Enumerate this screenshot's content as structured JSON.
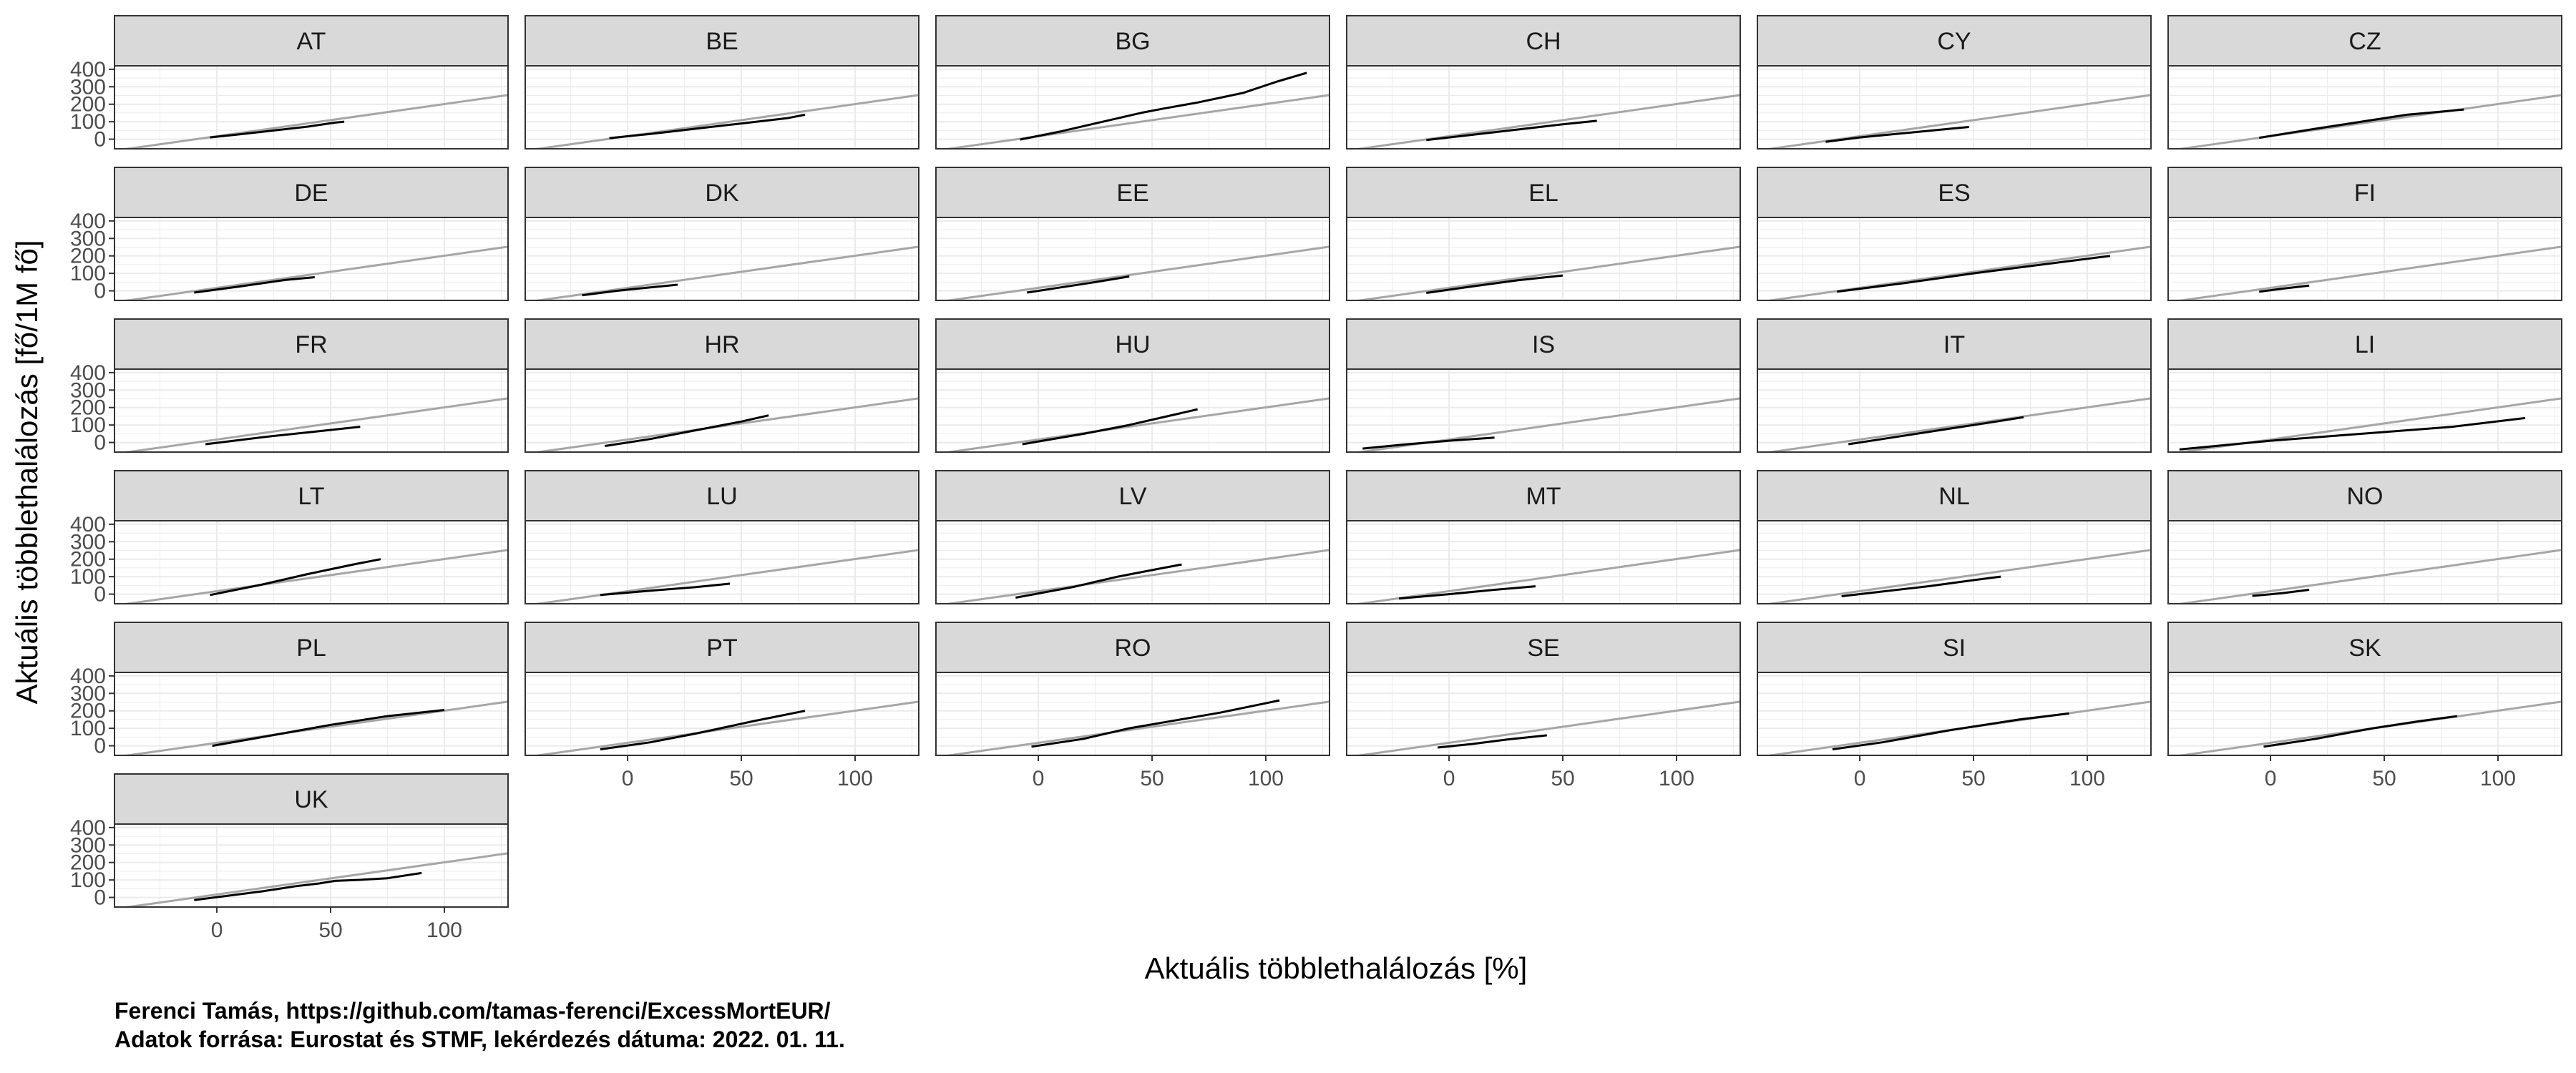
{
  "caption": {
    "line1": "Ferenci Tamás, https://github.com/tamas-ferenci/ExcessMortEUR/",
    "line2": "Adatok forrása: Eurostat és STMF, lekérdezés dátuma: 2022. 01. 11."
  },
  "colors": {
    "data_line": "#000000",
    "reference_line": "#a6a6a6",
    "strip_fill": "#d9d9d9",
    "grid": "#ebebeb",
    "panel_border": "#333333"
  },
  "chart_data": {
    "type": "line",
    "layout": "facet_wrap",
    "ncol": 6,
    "xlabel": "Aktuális többlethalálozás [%]",
    "ylabel": "Aktuális többlethalálozás [fő/1M fő]",
    "xlim": [
      -45,
      128
    ],
    "ylim": [
      -55,
      420
    ],
    "x_ticks": [
      0,
      50,
      100
    ],
    "y_ticks": [
      0,
      100,
      200,
      300,
      400
    ],
    "grid": true,
    "reference_line": {
      "slope": 1.84,
      "intercept": 17
    },
    "panels": [
      {
        "name": "AT",
        "points": [
          [
            -3,
            10
          ],
          [
            10,
            28
          ],
          [
            25,
            50
          ],
          [
            40,
            72
          ],
          [
            52,
            95
          ],
          [
            56,
            100
          ]
        ]
      },
      {
        "name": "BE",
        "points": [
          [
            -8,
            6
          ],
          [
            10,
            30
          ],
          [
            30,
            60
          ],
          [
            50,
            90
          ],
          [
            70,
            120
          ],
          [
            78,
            140
          ]
        ]
      },
      {
        "name": "BG",
        "points": [
          [
            -8,
            -2
          ],
          [
            10,
            45
          ],
          [
            30,
            105
          ],
          [
            45,
            150
          ],
          [
            55,
            175
          ],
          [
            70,
            210
          ],
          [
            90,
            265
          ],
          [
            105,
            330
          ],
          [
            118,
            380
          ]
        ]
      },
      {
        "name": "CH",
        "points": [
          [
            -10,
            -5
          ],
          [
            10,
            25
          ],
          [
            30,
            55
          ],
          [
            50,
            85
          ],
          [
            65,
            105
          ]
        ]
      },
      {
        "name": "CY",
        "points": [
          [
            -15,
            -15
          ],
          [
            0,
            10
          ],
          [
            20,
            35
          ],
          [
            40,
            60
          ],
          [
            48,
            70
          ]
        ]
      },
      {
        "name": "CZ",
        "points": [
          [
            -5,
            8
          ],
          [
            20,
            60
          ],
          [
            40,
            100
          ],
          [
            60,
            140
          ],
          [
            85,
            170
          ]
        ]
      },
      {
        "name": "DE",
        "points": [
          [
            -10,
            -10
          ],
          [
            10,
            25
          ],
          [
            30,
            62
          ],
          [
            43,
            78
          ]
        ]
      },
      {
        "name": "DK",
        "points": [
          [
            -20,
            -25
          ],
          [
            -5,
            0
          ],
          [
            10,
            20
          ],
          [
            22,
            35
          ]
        ]
      },
      {
        "name": "EE",
        "points": [
          [
            -5,
            -10
          ],
          [
            10,
            20
          ],
          [
            25,
            50
          ],
          [
            40,
            82
          ]
        ]
      },
      {
        "name": "EL",
        "points": [
          [
            -10,
            -12
          ],
          [
            10,
            25
          ],
          [
            30,
            60
          ],
          [
            50,
            88
          ]
        ]
      },
      {
        "name": "ES",
        "points": [
          [
            -10,
            -5
          ],
          [
            20,
            45
          ],
          [
            50,
            100
          ],
          [
            80,
            150
          ],
          [
            110,
            200
          ]
        ]
      },
      {
        "name": "FI",
        "points": [
          [
            -5,
            -5
          ],
          [
            5,
            12
          ],
          [
            17,
            30
          ]
        ]
      },
      {
        "name": "FR",
        "points": [
          [
            -5,
            -10
          ],
          [
            20,
            30
          ],
          [
            45,
            65
          ],
          [
            63,
            90
          ]
        ]
      },
      {
        "name": "HR",
        "points": [
          [
            -10,
            -20
          ],
          [
            10,
            20
          ],
          [
            30,
            70
          ],
          [
            50,
            120
          ],
          [
            62,
            155
          ]
        ]
      },
      {
        "name": "HU",
        "points": [
          [
            -7,
            -10
          ],
          [
            20,
            50
          ],
          [
            40,
            100
          ],
          [
            60,
            160
          ],
          [
            70,
            190
          ]
        ]
      },
      {
        "name": "IS",
        "points": [
          [
            -38,
            -35
          ],
          [
            -20,
            -12
          ],
          [
            0,
            10
          ],
          [
            20,
            28
          ]
        ]
      },
      {
        "name": "IT",
        "points": [
          [
            -5,
            -10
          ],
          [
            20,
            40
          ],
          [
            40,
            80
          ],
          [
            60,
            120
          ],
          [
            72,
            145
          ]
        ]
      },
      {
        "name": "LI",
        "points": [
          [
            -40,
            -40
          ],
          [
            0,
            10
          ],
          [
            40,
            50
          ],
          [
            80,
            90
          ],
          [
            112,
            140
          ]
        ]
      },
      {
        "name": "LT",
        "points": [
          [
            -3,
            -5
          ],
          [
            20,
            55
          ],
          [
            40,
            115
          ],
          [
            60,
            170
          ],
          [
            72,
            200
          ]
        ]
      },
      {
        "name": "LU",
        "points": [
          [
            -12,
            -5
          ],
          [
            10,
            20
          ],
          [
            30,
            40
          ],
          [
            45,
            60
          ]
        ]
      },
      {
        "name": "LV",
        "points": [
          [
            -10,
            -20
          ],
          [
            15,
            40
          ],
          [
            35,
            100
          ],
          [
            55,
            150
          ],
          [
            63,
            170
          ]
        ]
      },
      {
        "name": "MT",
        "points": [
          [
            -22,
            -25
          ],
          [
            0,
            0
          ],
          [
            20,
            25
          ],
          [
            38,
            45
          ]
        ]
      },
      {
        "name": "NL",
        "points": [
          [
            -8,
            -12
          ],
          [
            10,
            15
          ],
          [
            30,
            45
          ],
          [
            50,
            80
          ],
          [
            62,
            100
          ]
        ]
      },
      {
        "name": "NO",
        "points": [
          [
            -8,
            -10
          ],
          [
            5,
            5
          ],
          [
            17,
            25
          ]
        ]
      },
      {
        "name": "PL",
        "points": [
          [
            -2,
            0
          ],
          [
            20,
            50
          ],
          [
            50,
            120
          ],
          [
            75,
            170
          ],
          [
            100,
            205
          ]
        ]
      },
      {
        "name": "PT",
        "points": [
          [
            -12,
            -20
          ],
          [
            10,
            20
          ],
          [
            30,
            70
          ],
          [
            55,
            140
          ],
          [
            78,
            200
          ]
        ]
      },
      {
        "name": "RO",
        "points": [
          [
            -3,
            -5
          ],
          [
            20,
            40
          ],
          [
            40,
            100
          ],
          [
            60,
            145
          ],
          [
            80,
            190
          ],
          [
            106,
            260
          ]
        ]
      },
      {
        "name": "SE",
        "points": [
          [
            -5,
            -10
          ],
          [
            10,
            10
          ],
          [
            25,
            35
          ],
          [
            43,
            60
          ]
        ]
      },
      {
        "name": "SI",
        "points": [
          [
            -12,
            -20
          ],
          [
            10,
            20
          ],
          [
            40,
            90
          ],
          [
            70,
            150
          ],
          [
            92,
            185
          ]
        ]
      },
      {
        "name": "SK",
        "points": [
          [
            -3,
            -5
          ],
          [
            20,
            40
          ],
          [
            45,
            100
          ],
          [
            65,
            140
          ],
          [
            82,
            170
          ]
        ]
      },
      {
        "name": "UK",
        "points": [
          [
            -10,
            -15
          ],
          [
            5,
            10
          ],
          [
            20,
            35
          ],
          [
            35,
            65
          ],
          [
            45,
            80
          ],
          [
            52,
            95
          ],
          [
            62,
            100
          ],
          [
            75,
            110
          ],
          [
            90,
            140
          ]
        ]
      }
    ]
  }
}
